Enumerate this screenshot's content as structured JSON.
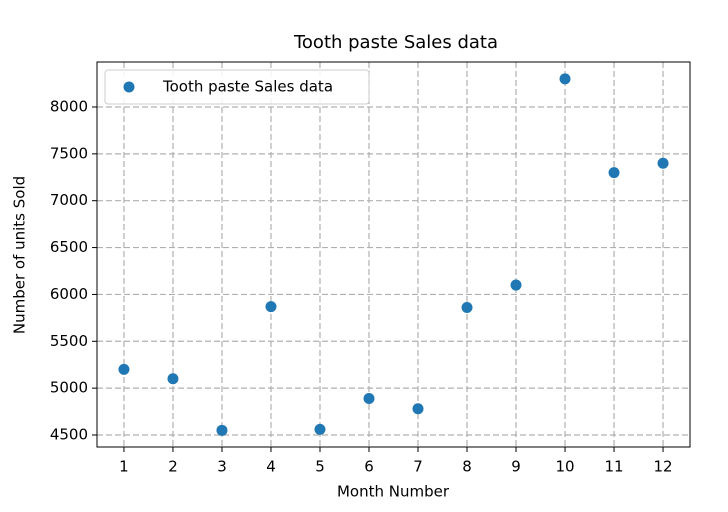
{
  "chart_data": {
    "type": "scatter",
    "title": "Tooth paste Sales data",
    "x_label": "Month Number",
    "y_label": "Number of units Sold",
    "x": [
      1,
      2,
      3,
      4,
      5,
      6,
      7,
      8,
      9,
      10,
      11,
      12
    ],
    "series": [
      {
        "name": "Tooth paste Sales data",
        "color": "#1f77b4",
        "values": [
          5200,
          5100,
          4550,
          5870,
          4560,
          4890,
          4780,
          5860,
          6100,
          8300,
          7300,
          7400
        ]
      }
    ],
    "xlim": [
      0.45,
      12.55
    ],
    "ylim": [
      4372,
      8480
    ],
    "xticks": [
      1,
      2,
      3,
      4,
      5,
      6,
      7,
      8,
      9,
      10,
      11,
      12
    ],
    "yticks": [
      4500,
      5000,
      5500,
      6000,
      6500,
      7000,
      7500,
      8000
    ],
    "grid": true,
    "legend": "upper-left"
  }
}
